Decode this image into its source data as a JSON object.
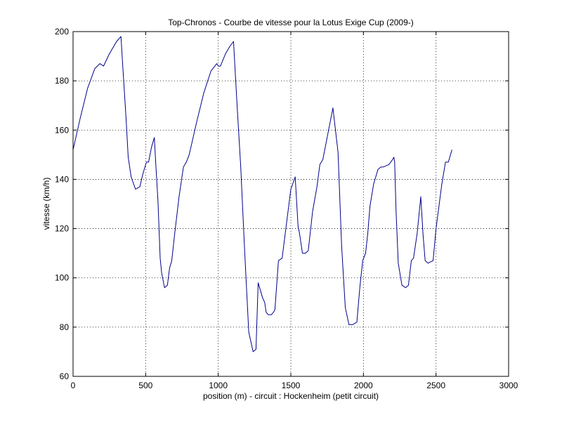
{
  "chart_data": {
    "type": "line",
    "title": "Top-Chronos - Courbe de vitesse pour la Lotus Exige Cup (2009-)",
    "xlabel": "position (m) - circuit : Hockenheim (petit circuit)",
    "ylabel": "vitesse (km/h)",
    "xlim": [
      0,
      3000
    ],
    "ylim": [
      60,
      200
    ],
    "xticks": [
      0,
      500,
      1000,
      1500,
      2000,
      2500,
      3000
    ],
    "yticks": [
      60,
      80,
      100,
      120,
      140,
      160,
      180,
      200
    ],
    "xtick_labels": [
      "0",
      "500",
      "1000",
      "1500",
      "2000",
      "2500",
      "3000"
    ],
    "ytick_labels": [
      "60",
      "80",
      "100",
      "120",
      "140",
      "160",
      "180",
      "200"
    ],
    "grid": true,
    "line_color": "#00008b",
    "series": [
      {
        "x": [
          0,
          50,
          100,
          150,
          185,
          210,
          250,
          300,
          330,
          340,
          365,
          380,
          400,
          430,
          460,
          480,
          505,
          520,
          540,
          560,
          570,
          585,
          600,
          610,
          630,
          650,
          665,
          680,
          700,
          730,
          760,
          780,
          800,
          850,
          900,
          950,
          990,
          1000,
          1015,
          1050,
          1080,
          1105,
          1130,
          1155,
          1180,
          1210,
          1240,
          1260,
          1275,
          1305,
          1320,
          1330,
          1345,
          1365,
          1380,
          1390,
          1415,
          1440,
          1455,
          1470,
          1500,
          1530,
          1550,
          1560,
          1580,
          1600,
          1620,
          1650,
          1680,
          1700,
          1720,
          1750,
          1790,
          1825,
          1850,
          1875,
          1900,
          1925,
          1955,
          1975,
          1995,
          2015,
          2030,
          2045,
          2070,
          2100,
          2120,
          2135,
          2175,
          2200,
          2210,
          2215,
          2225,
          2240,
          2265,
          2290,
          2310,
          2330,
          2345,
          2370,
          2395,
          2410,
          2425,
          2445,
          2480,
          2500,
          2540,
          2565,
          2585,
          2600,
          2610
        ],
        "y": [
          152,
          165,
          177,
          185,
          187,
          186,
          191,
          196,
          198,
          188,
          165,
          149,
          141,
          136,
          137,
          142,
          147,
          147,
          153,
          157,
          146,
          131,
          108,
          102,
          96,
          97,
          104,
          107,
          118,
          133,
          145,
          147,
          150,
          163,
          175,
          184,
          187,
          186,
          186,
          191,
          194,
          196,
          170,
          145,
          113,
          78,
          70,
          71,
          98,
          92,
          90,
          86,
          85,
          85,
          86,
          87,
          107,
          108,
          115,
          122,
          136,
          141,
          121,
          118,
          110,
          110,
          111,
          127,
          137,
          146,
          148,
          157,
          169,
          151,
          113,
          88,
          81,
          81,
          82,
          96,
          107,
          110,
          118,
          129,
          138,
          144,
          145,
          145,
          146,
          148,
          149,
          147,
          127,
          106,
          97,
          96,
          97,
          107,
          108,
          118,
          133,
          118,
          107,
          106,
          107,
          120,
          138,
          147,
          147,
          150,
          152
        ]
      }
    ]
  }
}
